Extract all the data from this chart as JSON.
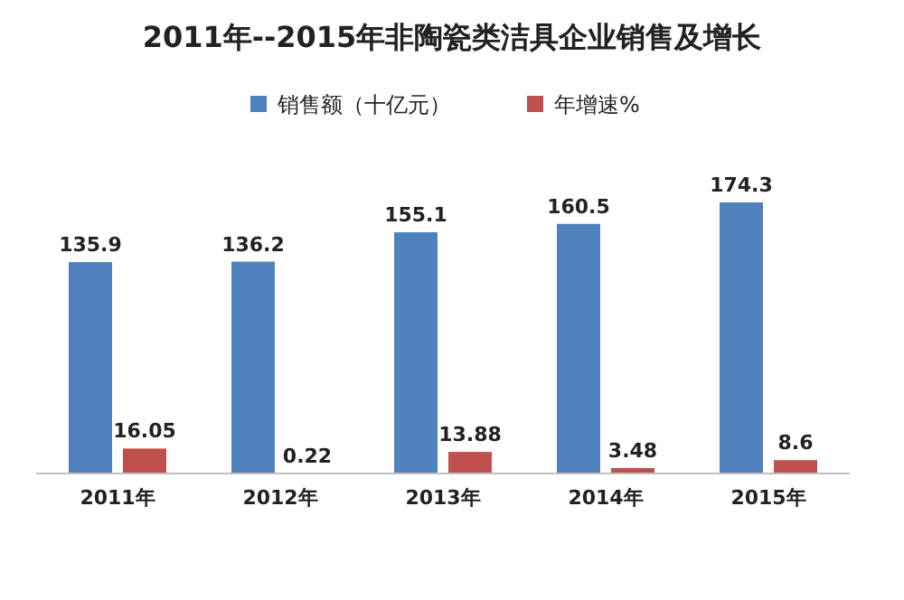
{
  "chart_data": {
    "type": "bar",
    "title": "2011年--2015年非陶瓷类洁具企业销售及增长",
    "categories": [
      "2011年",
      "2012年",
      "2013年",
      "2014年",
      "2015年"
    ],
    "series": [
      {
        "name": "销售额（十亿元）",
        "color": "#4f81bd",
        "values": [
          135.9,
          136.2,
          155.1,
          160.5,
          174.3
        ]
      },
      {
        "name": "年增速%",
        "color": "#c0504d",
        "values": [
          16.05,
          0.22,
          13.88,
          3.48,
          8.6
        ]
      }
    ],
    "data_labels": true,
    "legend": "top",
    "grid": false
  }
}
